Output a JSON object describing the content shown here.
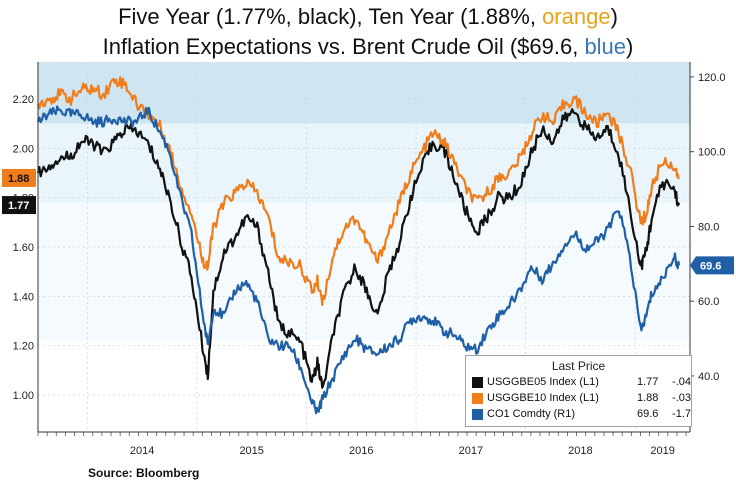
{
  "title": {
    "line1_prefix": "Five Year (1.77%, black), Ten Year (1.88%, ",
    "line1_highlight": "orange",
    "line1_suffix": ")",
    "line2_prefix": "Inflation Expectations  vs. Brent Crude Oil ($69.6, ",
    "line2_highlight": "blue",
    "line2_suffix": ")"
  },
  "source": "Source: Bloomberg",
  "colors": {
    "five_year": "#111111",
    "ten_year": "#f07d1b",
    "brent": "#1f5fa8",
    "band_dark": "#cfe6f2",
    "band_light": "#e9f5fa"
  },
  "legend": {
    "title": "Last Price",
    "rows": [
      {
        "name": "USGGBE05 Index  (L1)",
        "value": "1.77",
        "change": "-.04",
        "color": "#111111"
      },
      {
        "name": "USGGBE10 Index  (L1)",
        "value": "1.88",
        "change": "-.03",
        "color": "#f07d1b"
      },
      {
        "name": "CO1 Comdty  (R1)",
        "value": "69.6",
        "change": "-1.7",
        "color": "#1f5fa8"
      }
    ]
  },
  "chart_data": {
    "type": "line",
    "x_labels": [
      "2014",
      "2015",
      "2016",
      "2017",
      "2018",
      "2019"
    ],
    "y_left": {
      "ticks": [
        "1.00",
        "1.20",
        "1.40",
        "1.60",
        "1.80",
        "2.00",
        "2.20"
      ],
      "range": [
        0.85,
        2.35
      ]
    },
    "y_right": {
      "ticks": [
        "40.0",
        "60.0",
        "80.0",
        "100.0",
        "120.0"
      ],
      "range": [
        25,
        124
      ]
    },
    "last_value_tags": {
      "five_year": "1.77",
      "ten_year": "1.88",
      "brent": "69.6"
    },
    "series": [
      {
        "key": "five_year",
        "axis": "left",
        "points": [
          [
            2013.5,
            1.9
          ],
          [
            2013.6,
            1.93
          ],
          [
            2013.7,
            1.96
          ],
          [
            2013.8,
            1.97
          ],
          [
            2013.9,
            2.03
          ],
          [
            2014.0,
            2.02
          ],
          [
            2014.1,
            1.98
          ],
          [
            2014.2,
            2.03
          ],
          [
            2014.3,
            2.08
          ],
          [
            2014.4,
            2.07
          ],
          [
            2014.5,
            2.02
          ],
          [
            2014.6,
            1.93
          ],
          [
            2014.7,
            1.8
          ],
          [
            2014.8,
            1.63
          ],
          [
            2014.9,
            1.48
          ],
          [
            2015.0,
            1.2
          ],
          [
            2015.05,
            1.08
          ],
          [
            2015.1,
            1.42
          ],
          [
            2015.2,
            1.58
          ],
          [
            2015.3,
            1.64
          ],
          [
            2015.4,
            1.72
          ],
          [
            2015.5,
            1.68
          ],
          [
            2015.6,
            1.5
          ],
          [
            2015.7,
            1.28
          ],
          [
            2015.8,
            1.25
          ],
          [
            2015.9,
            1.21
          ],
          [
            2016.0,
            1.05
          ],
          [
            2016.05,
            1.13
          ],
          [
            2016.1,
            1.02
          ],
          [
            2016.2,
            1.26
          ],
          [
            2016.3,
            1.42
          ],
          [
            2016.4,
            1.52
          ],
          [
            2016.5,
            1.42
          ],
          [
            2016.6,
            1.32
          ],
          [
            2016.7,
            1.5
          ],
          [
            2016.8,
            1.62
          ],
          [
            2016.9,
            1.8
          ],
          [
            2017.0,
            1.92
          ],
          [
            2017.1,
            2.02
          ],
          [
            2017.2,
            2.0
          ],
          [
            2017.3,
            1.88
          ],
          [
            2017.4,
            1.75
          ],
          [
            2017.5,
            1.66
          ],
          [
            2017.6,
            1.72
          ],
          [
            2017.7,
            1.8
          ],
          [
            2017.8,
            1.8
          ],
          [
            2017.9,
            1.85
          ],
          [
            2018.0,
            1.98
          ],
          [
            2018.1,
            2.08
          ],
          [
            2018.2,
            2.03
          ],
          [
            2018.3,
            2.12
          ],
          [
            2018.4,
            2.15
          ],
          [
            2018.5,
            2.08
          ],
          [
            2018.6,
            2.04
          ],
          [
            2018.7,
            2.08
          ],
          [
            2018.8,
            1.98
          ],
          [
            2018.9,
            1.76
          ],
          [
            2019.0,
            1.52
          ],
          [
            2019.05,
            1.58
          ],
          [
            2019.1,
            1.72
          ],
          [
            2019.2,
            1.86
          ],
          [
            2019.3,
            1.84
          ],
          [
            2019.35,
            1.77
          ]
        ]
      },
      {
        "key": "ten_year",
        "axis": "left",
        "points": [
          [
            2013.5,
            2.18
          ],
          [
            2013.6,
            2.2
          ],
          [
            2013.7,
            2.22
          ],
          [
            2013.8,
            2.2
          ],
          [
            2013.9,
            2.24
          ],
          [
            2014.0,
            2.24
          ],
          [
            2014.1,
            2.22
          ],
          [
            2014.2,
            2.28
          ],
          [
            2014.3,
            2.26
          ],
          [
            2014.4,
            2.18
          ],
          [
            2014.5,
            2.14
          ],
          [
            2014.6,
            2.1
          ],
          [
            2014.7,
            2.0
          ],
          [
            2014.8,
            1.85
          ],
          [
            2014.9,
            1.74
          ],
          [
            2015.0,
            1.55
          ],
          [
            2015.05,
            1.52
          ],
          [
            2015.1,
            1.68
          ],
          [
            2015.2,
            1.78
          ],
          [
            2015.3,
            1.82
          ],
          [
            2015.4,
            1.86
          ],
          [
            2015.5,
            1.82
          ],
          [
            2015.6,
            1.72
          ],
          [
            2015.7,
            1.55
          ],
          [
            2015.8,
            1.54
          ],
          [
            2015.9,
            1.52
          ],
          [
            2016.0,
            1.42
          ],
          [
            2016.05,
            1.46
          ],
          [
            2016.1,
            1.38
          ],
          [
            2016.2,
            1.58
          ],
          [
            2016.3,
            1.68
          ],
          [
            2016.4,
            1.72
          ],
          [
            2016.5,
            1.62
          ],
          [
            2016.6,
            1.54
          ],
          [
            2016.7,
            1.66
          ],
          [
            2016.8,
            1.78
          ],
          [
            2016.9,
            1.9
          ],
          [
            2017.0,
            1.98
          ],
          [
            2017.1,
            2.06
          ],
          [
            2017.2,
            2.03
          ],
          [
            2017.3,
            1.94
          ],
          [
            2017.4,
            1.84
          ],
          [
            2017.5,
            1.78
          ],
          [
            2017.6,
            1.82
          ],
          [
            2017.7,
            1.88
          ],
          [
            2017.8,
            1.9
          ],
          [
            2017.9,
            1.96
          ],
          [
            2018.0,
            2.06
          ],
          [
            2018.1,
            2.14
          ],
          [
            2018.2,
            2.1
          ],
          [
            2018.3,
            2.18
          ],
          [
            2018.4,
            2.2
          ],
          [
            2018.5,
            2.14
          ],
          [
            2018.6,
            2.1
          ],
          [
            2018.7,
            2.15
          ],
          [
            2018.8,
            2.06
          ],
          [
            2018.9,
            1.92
          ],
          [
            2019.0,
            1.7
          ],
          [
            2019.05,
            1.73
          ],
          [
            2019.1,
            1.84
          ],
          [
            2019.2,
            1.95
          ],
          [
            2019.3,
            1.93
          ],
          [
            2019.35,
            1.88
          ]
        ]
      },
      {
        "key": "brent",
        "axis": "right",
        "points": [
          [
            2013.5,
            108
          ],
          [
            2013.6,
            110
          ],
          [
            2013.7,
            111
          ],
          [
            2013.8,
            110
          ],
          [
            2013.9,
            110
          ],
          [
            2014.0,
            108
          ],
          [
            2014.1,
            108
          ],
          [
            2014.2,
            109
          ],
          [
            2014.3,
            108
          ],
          [
            2014.4,
            108
          ],
          [
            2014.5,
            111
          ],
          [
            2014.6,
            106
          ],
          [
            2014.7,
            100
          ],
          [
            2014.8,
            88
          ],
          [
            2014.9,
            78
          ],
          [
            2015.0,
            57
          ],
          [
            2015.05,
            48
          ],
          [
            2015.1,
            58
          ],
          [
            2015.2,
            56
          ],
          [
            2015.3,
            63
          ],
          [
            2015.4,
            65
          ],
          [
            2015.5,
            60
          ],
          [
            2015.6,
            50
          ],
          [
            2015.7,
            48
          ],
          [
            2015.8,
            48
          ],
          [
            2015.9,
            42
          ],
          [
            2016.0,
            33
          ],
          [
            2016.05,
            30
          ],
          [
            2016.1,
            34
          ],
          [
            2016.2,
            40
          ],
          [
            2016.3,
            46
          ],
          [
            2016.4,
            50
          ],
          [
            2016.5,
            47
          ],
          [
            2016.6,
            46
          ],
          [
            2016.7,
            48
          ],
          [
            2016.8,
            50
          ],
          [
            2016.9,
            55
          ],
          [
            2017.0,
            56
          ],
          [
            2017.1,
            55
          ],
          [
            2017.2,
            52
          ],
          [
            2017.3,
            51
          ],
          [
            2017.4,
            48
          ],
          [
            2017.5,
            47
          ],
          [
            2017.6,
            52
          ],
          [
            2017.7,
            56
          ],
          [
            2017.8,
            59
          ],
          [
            2017.9,
            63
          ],
          [
            2018.0,
            69
          ],
          [
            2018.1,
            66
          ],
          [
            2018.2,
            70
          ],
          [
            2018.3,
            75
          ],
          [
            2018.4,
            78
          ],
          [
            2018.5,
            74
          ],
          [
            2018.6,
            76
          ],
          [
            2018.7,
            79
          ],
          [
            2018.8,
            85
          ],
          [
            2018.9,
            72
          ],
          [
            2019.0,
            52
          ],
          [
            2019.05,
            56
          ],
          [
            2019.1,
            62
          ],
          [
            2019.2,
            66
          ],
          [
            2019.3,
            72
          ],
          [
            2019.35,
            69.6
          ]
        ]
      }
    ]
  }
}
